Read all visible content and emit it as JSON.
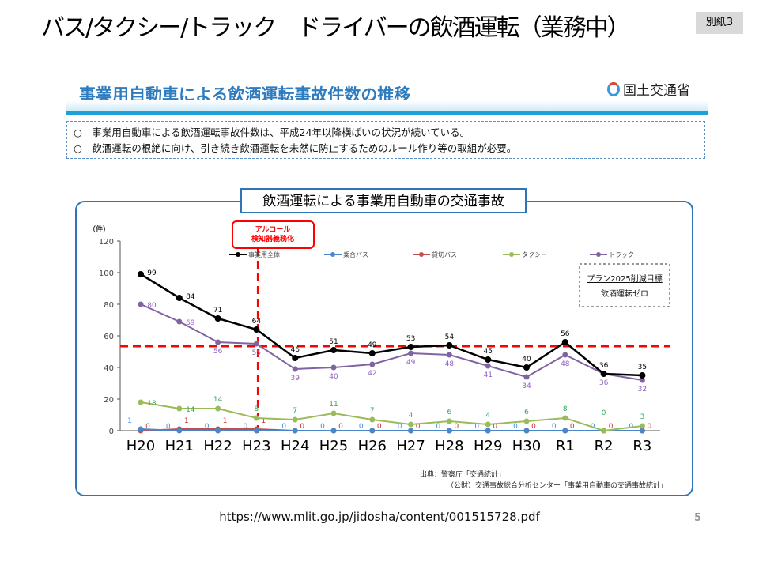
{
  "slide": {
    "title": "バス/タクシー/トラック　ドライバーの飲酒運転（業務中）",
    "annex_label": "別紙3",
    "section_title": "事業用自動車による飲酒運転事故件数の推移",
    "ministry": "国土交通省",
    "bullets": [
      "○　事業用自動車による飲酒運転事故件数は、平成24年以降横ばいの状況が続いている。",
      "○　飲酒運転の根絶に向け、引き続き飲酒運転を未然に防止するためのルール作り等の取組が必要。"
    ],
    "url": "https://www.mlit.go.jp/jidosha/content/001515728.pdf",
    "page_number": "5"
  },
  "chart_data": {
    "type": "line",
    "title": "飲酒運転による事業用自動車の交通事故",
    "ylabel": "（件）",
    "ylim": [
      0,
      120
    ],
    "yticks": [
      0,
      20,
      40,
      60,
      80,
      100,
      120
    ],
    "categories": [
      "H20",
      "H21",
      "H22",
      "H23",
      "H24",
      "H25",
      "H26",
      "H27",
      "H28",
      "H29",
      "H30",
      "R1",
      "R2",
      "R3"
    ],
    "legend_position": "top",
    "series": [
      {
        "name": "事業用全体",
        "color": "#000000",
        "label_color": "#000000",
        "values": [
          99,
          84,
          71,
          64,
          46,
          51,
          49,
          53,
          54,
          45,
          40,
          56,
          36,
          35
        ]
      },
      {
        "name": "乗合バス",
        "color": "#4a86c8",
        "label_color": "#3b8ee0",
        "values": [
          1,
          0,
          0,
          0,
          0,
          0,
          0,
          0,
          0,
          0,
          0,
          0,
          0,
          0
        ]
      },
      {
        "name": "貸切バス",
        "color": "#c0504d",
        "label_color": "#d03030",
        "values": [
          0,
          1,
          1,
          1,
          0,
          0,
          0,
          0,
          0,
          0,
          0,
          0,
          0,
          0
        ]
      },
      {
        "name": "タクシー",
        "color": "#9bbb59",
        "label_color": "#2eaa5c",
        "values": [
          18,
          14,
          14,
          8,
          7,
          11,
          7,
          4,
          6,
          4,
          6,
          8,
          0,
          3
        ]
      },
      {
        "name": "トラック",
        "color": "#8064a2",
        "label_color": "#8e5fbf",
        "values": [
          80,
          69,
          56,
          55,
          39,
          40,
          42,
          49,
          48,
          41,
          34,
          48,
          36,
          32
        ]
      }
    ],
    "annotations": {
      "alcohol_check": "アルコール\n検知器義務化",
      "alcohol_check_at": "H23",
      "target_title": "プラン2025削減目標",
      "target_text": "飲酒運転ゼロ",
      "reference_line_value": 53.5,
      "source_line1": "出典：警察庁「交通統計」",
      "source_line2": "（公財）交通事故総合分析センター「事業用自動車の交通事故統計」"
    },
    "colors": {
      "accent_red": "#ff0000",
      "frame_blue": "#2e75b6"
    }
  }
}
